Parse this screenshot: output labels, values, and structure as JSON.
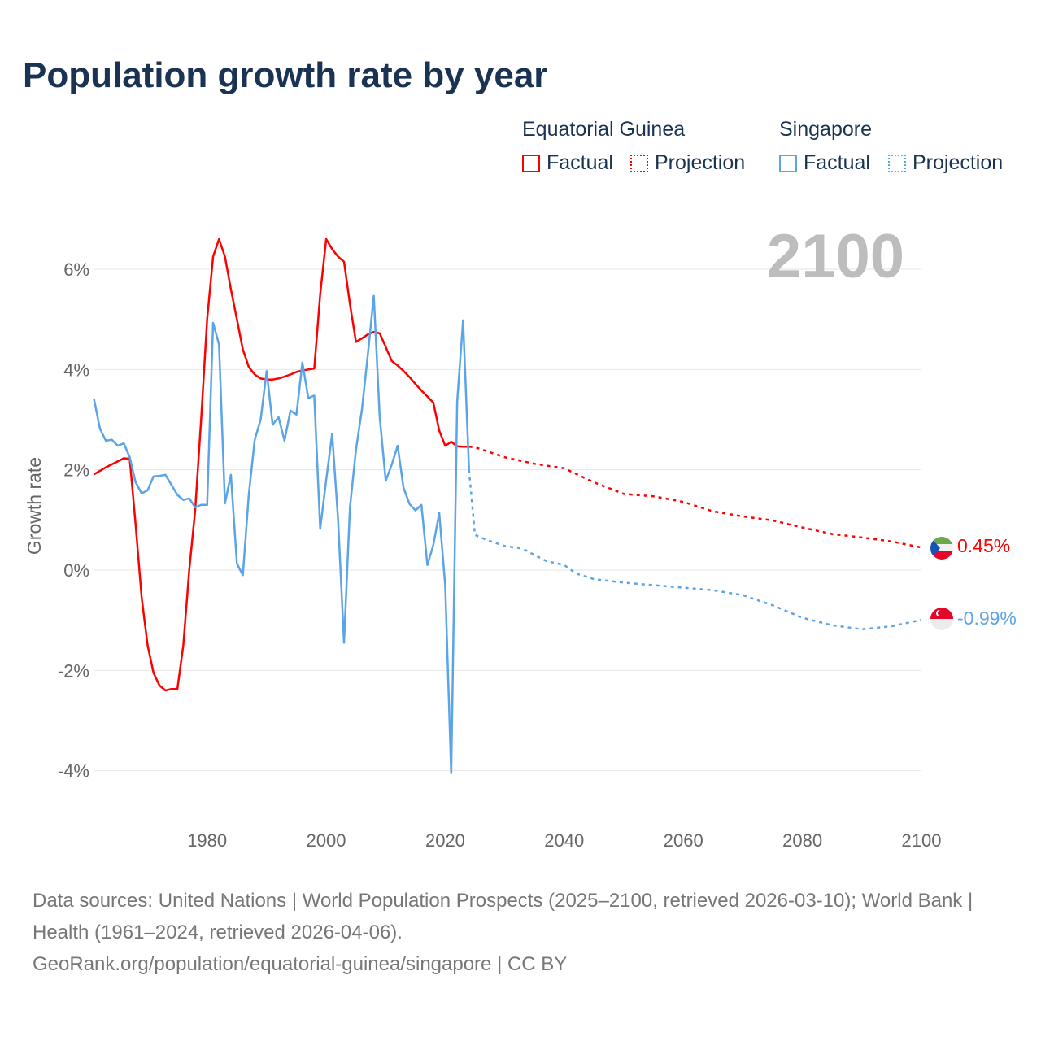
{
  "title": "Population growth rate by year",
  "legend": {
    "groups": [
      {
        "name": "Equatorial Guinea",
        "factual": "Factual",
        "projection": "Projection",
        "color": "#ff0000"
      },
      {
        "name": "Singapore",
        "factual": "Factual",
        "projection": "Projection",
        "color": "#5ba4e8"
      }
    ]
  },
  "current_year": "2100",
  "end_labels": {
    "equatorial_guinea": "0.45%",
    "singapore": "-0.99%"
  },
  "footer": {
    "sources": "Data sources: United Nations | World Population Prospects (2025–2100, retrieved 2026-03-10); World Bank | Health (1961–2024, retrieved 2026-04-06).",
    "link": "GeoRank.org/population/equatorial-guinea/singapore | CC BY"
  },
  "chart_data": {
    "type": "line",
    "title": "Population growth rate by year",
    "xlabel": "",
    "ylabel": "Growth rate",
    "xlim": [
      1961,
      2100
    ],
    "ylim": [
      -5,
      7
    ],
    "x_ticks": [
      "1980",
      "2000",
      "2020",
      "2040",
      "2060",
      "2080",
      "2100"
    ],
    "x_tick_values": [
      1980,
      2000,
      2020,
      2040,
      2060,
      2080,
      2100
    ],
    "y_ticks": [
      "6%",
      "4%",
      "2%",
      "0%",
      "-2%",
      "-4%"
    ],
    "y_tick_values": [
      6,
      4,
      2,
      0,
      -2,
      -4
    ],
    "grid": true,
    "legend_position": "top-right",
    "series": [
      {
        "name": "Equatorial Guinea Factual",
        "color": "#ff0000",
        "style": "solid",
        "x_start": 1961,
        "values": [
          1.91,
          1.98,
          2.05,
          2.11,
          2.17,
          2.23,
          2.22,
          0.9,
          -0.55,
          -1.5,
          -2.05,
          -2.3,
          -2.4,
          -2.37,
          -2.37,
          -1.5,
          0.0,
          1.2,
          3.0,
          5.0,
          6.25,
          6.6,
          6.25,
          5.6,
          5.0,
          4.4,
          4.05,
          3.9,
          3.82,
          3.8,
          3.8,
          3.82,
          3.86,
          3.9,
          3.95,
          3.98,
          4.0,
          4.02,
          5.5,
          6.6,
          6.4,
          6.25,
          6.15,
          5.3,
          4.55,
          4.62,
          4.7,
          4.75,
          4.72,
          4.45,
          4.17,
          4.08,
          3.97,
          3.85,
          3.71,
          3.58,
          3.46,
          3.34,
          2.78,
          2.48,
          2.56,
          2.47,
          2.46,
          2.46
        ]
      },
      {
        "name": "Equatorial Guinea Projection",
        "color": "#ff0000",
        "style": "dotted",
        "x": [
          2024,
          2025,
          2030,
          2035,
          2040,
          2045,
          2050,
          2055,
          2060,
          2065,
          2070,
          2075,
          2080,
          2085,
          2090,
          2095,
          2100
        ],
        "values": [
          2.46,
          2.45,
          2.25,
          2.12,
          2.03,
          1.75,
          1.52,
          1.47,
          1.36,
          1.17,
          1.07,
          0.99,
          0.85,
          0.72,
          0.65,
          0.57,
          0.45
        ]
      },
      {
        "name": "Singapore Factual",
        "color": "#5ba4e8",
        "style": "solid",
        "x_start": 1961,
        "values": [
          3.41,
          2.82,
          2.58,
          2.6,
          2.48,
          2.53,
          2.25,
          1.75,
          1.53,
          1.59,
          1.87,
          1.88,
          1.9,
          1.7,
          1.5,
          1.4,
          1.43,
          1.25,
          1.3,
          1.3,
          4.93,
          4.5,
          1.33,
          1.9,
          0.13,
          -0.1,
          1.5,
          2.6,
          3.0,
          3.97,
          2.9,
          3.05,
          2.58,
          3.18,
          3.1,
          4.14,
          3.43,
          3.48,
          0.82,
          1.8,
          2.72,
          1.0,
          -1.45,
          1.25,
          2.4,
          3.2,
          4.3,
          5.47,
          3.05,
          1.78,
          2.1,
          2.48,
          1.64,
          1.32,
          1.19,
          1.3,
          0.1,
          0.5,
          1.14,
          -0.3,
          -4.05,
          3.35,
          4.98,
          2.0
        ]
      },
      {
        "name": "Singapore Projection",
        "color": "#5ba4e8",
        "style": "dotted",
        "x": [
          2024,
          2025,
          2027,
          2030,
          2033,
          2035,
          2037,
          2040,
          2042,
          2045,
          2050,
          2055,
          2060,
          2065,
          2070,
          2075,
          2080,
          2085,
          2090,
          2095,
          2100
        ],
        "values": [
          2.0,
          0.7,
          0.6,
          0.48,
          0.43,
          0.3,
          0.18,
          0.1,
          -0.07,
          -0.18,
          -0.25,
          -0.3,
          -0.35,
          -0.4,
          -0.5,
          -0.7,
          -0.95,
          -1.1,
          -1.18,
          -1.12,
          -0.99
        ]
      }
    ]
  }
}
